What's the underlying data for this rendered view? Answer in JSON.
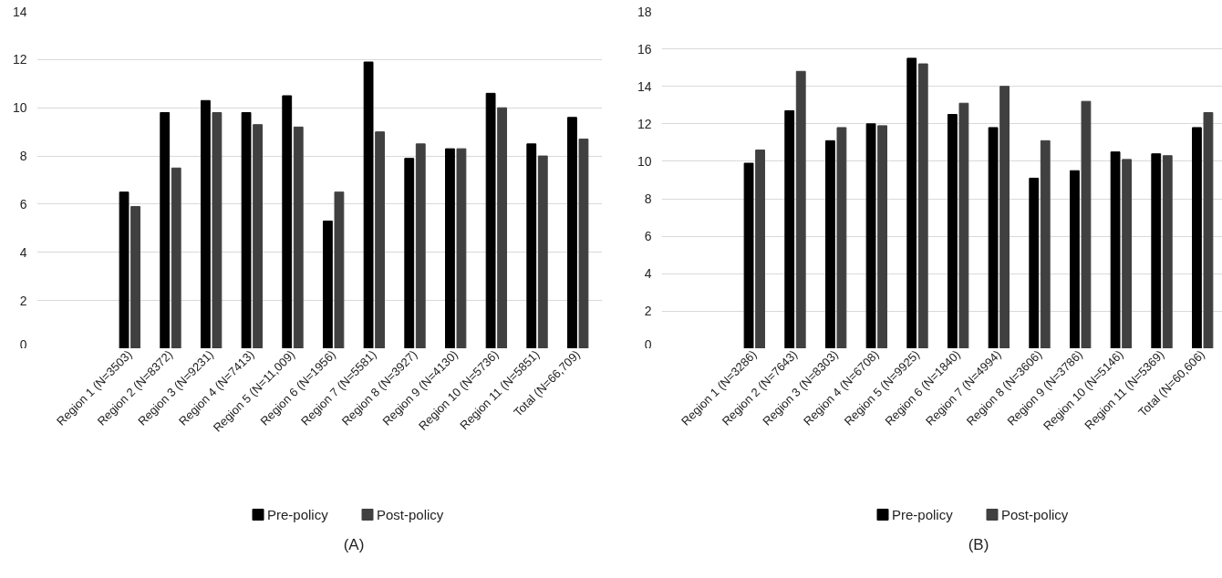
{
  "chart_data": [
    {
      "type": "bar",
      "title": "(A)",
      "categories": [
        "Region 1 (N=3503)",
        "Region 2 (N=8372)",
        "Region 3 (N=9231)",
        "Region 4 (N=7413)",
        "Region 5 (N=11,009)",
        "Region 6 (N=1956)",
        "Region 7 (N=5581)",
        "Region 8 (N=3927)",
        "Region 9 (N=4130)",
        "Region 10 (N=5736)",
        "Region 11 (N=5851)",
        "Total (N=66,709)"
      ],
      "series": [
        {
          "name": "Pre-policy",
          "color": "#000000",
          "values": [
            6.5,
            9.8,
            10.3,
            9.8,
            10.5,
            5.3,
            11.9,
            7.9,
            8.3,
            10.6,
            8.5,
            9.6
          ]
        },
        {
          "name": "Post-policy",
          "color": "#404040",
          "values": [
            5.9,
            7.5,
            9.8,
            9.3,
            9.2,
            6.5,
            9.0,
            8.5,
            8.3,
            10.0,
            8.0,
            8.7
          ]
        }
      ],
      "ylim": [
        0,
        14
      ],
      "yticks": [
        0,
        2,
        4,
        6,
        8,
        10,
        12,
        14
      ],
      "grid": "y",
      "legend": "bottom"
    },
    {
      "type": "bar",
      "title": "(B)",
      "categories": [
        "Region 1 (N=3286)",
        "Region 2 (N=7643)",
        "Region 3 (N=8303)",
        "Region 4 (N=6708)",
        "Region 5 (N=9925)",
        "Region 6 (N=1840)",
        "Region 7 (N=4994)",
        "Region 8 (N=3606)",
        "Region 9 (N=3786)",
        "Region 10 (N=5146)",
        "Region 11 (N=5369)",
        "Total (N=60,606)"
      ],
      "series": [
        {
          "name": "Pre-policy",
          "color": "#000000",
          "values": [
            9.9,
            12.7,
            11.1,
            12.0,
            15.5,
            12.5,
            11.8,
            9.1,
            9.5,
            10.5,
            10.4,
            11.8
          ]
        },
        {
          "name": "Post-policy",
          "color": "#404040",
          "values": [
            10.6,
            14.8,
            11.8,
            11.9,
            15.2,
            13.1,
            14.0,
            11.1,
            13.2,
            10.1,
            10.3,
            12.6
          ]
        }
      ],
      "ylim": [
        0,
        18
      ],
      "yticks": [
        0,
        2,
        4,
        6,
        8,
        10,
        12,
        14,
        16,
        18
      ],
      "grid": "y",
      "legend": "bottom"
    }
  ]
}
